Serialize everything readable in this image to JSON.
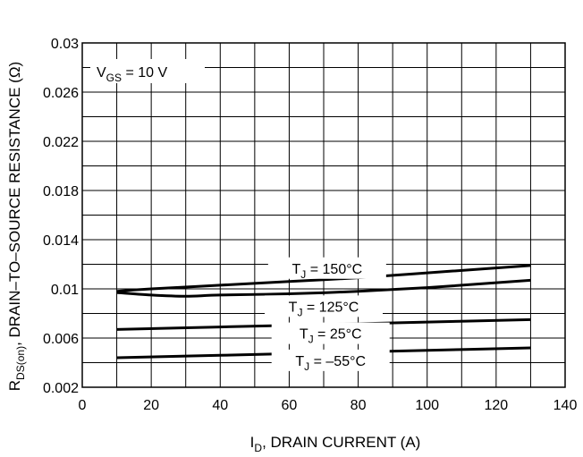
{
  "chart_data": {
    "type": "line",
    "xlabel": {
      "main": "I",
      "sub": "D",
      "rest": ", DRAIN CURRENT (A)"
    },
    "ylabel": {
      "main": "R",
      "sub": "DS(on)",
      "rest": ", DRAIN–TO–SOURCE RESISTANCE (Ω)"
    },
    "xlim": [
      0,
      140
    ],
    "ylim": [
      0.002,
      0.03
    ],
    "x_ticks": [
      0,
      20,
      40,
      60,
      80,
      100,
      120,
      140
    ],
    "x_tick_labels": [
      "0",
      "20",
      "40",
      "60",
      "80",
      "100",
      "120",
      "140"
    ],
    "y_ticks": [
      0.002,
      0.006,
      0.01,
      0.014,
      0.018,
      0.022,
      0.026,
      0.03
    ],
    "y_tick_labels": [
      "0.002",
      "0.006",
      "0.01",
      "0.014",
      "0.018",
      "0.022",
      "0.026",
      "0.03"
    ],
    "x_grid_step": 10,
    "y_grid_step": 0.002,
    "grid": true,
    "condition": {
      "main": "V",
      "sub": "GS",
      "rest": " = 10 V"
    },
    "series": [
      {
        "name_main": "T",
        "name_sub": "J",
        "name_rest": " = 150°C",
        "x": [
          10,
          20,
          40,
          60,
          80,
          100,
          120,
          130
        ],
        "y": [
          0.0098,
          0.01,
          0.0103,
          0.0106,
          0.0109,
          0.0113,
          0.0117,
          0.0119
        ]
      },
      {
        "name_main": "T",
        "name_sub": "J",
        "name_rest": " = 125°C",
        "x": [
          10,
          20,
          30,
          40,
          60,
          80,
          100,
          120,
          130
        ],
        "y": [
          0.0097,
          0.0095,
          0.0094,
          0.0095,
          0.0096,
          0.0098,
          0.0101,
          0.0105,
          0.0107
        ]
      },
      {
        "name_main": "T",
        "name_sub": "J",
        "name_rest": " = 25°C",
        "x": [
          10,
          40,
          70,
          100,
          130
        ],
        "y": [
          0.0067,
          0.0069,
          0.0071,
          0.0073,
          0.0075
        ]
      },
      {
        "name_main": "T",
        "name_sub": "J",
        "name_rest": " = –55°C",
        "x": [
          10,
          40,
          70,
          100,
          130
        ],
        "y": [
          0.0044,
          0.0046,
          0.0048,
          0.005,
          0.0052
        ]
      }
    ],
    "annotations": [
      {
        "series": 0,
        "x": 71,
        "y": 0.0114
      },
      {
        "series": 1,
        "x": 70,
        "y": 0.0083
      },
      {
        "series": 2,
        "x": 72,
        "y": 0.0061
      },
      {
        "series": 3,
        "x": 72,
        "y": 0.0039
      }
    ]
  }
}
